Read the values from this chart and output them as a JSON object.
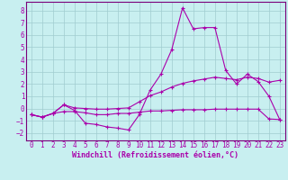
{
  "xlabel": "Windchill (Refroidissement éolien,°C)",
  "bg_color": "#c8eff0",
  "grid_color": "#a0ccd0",
  "line_color": "#aa00aa",
  "spine_color": "#7a007a",
  "xlim": [
    -0.5,
    23.5
  ],
  "ylim": [
    -2.6,
    8.7
  ],
  "xticks": [
    0,
    1,
    2,
    3,
    4,
    5,
    6,
    7,
    8,
    9,
    10,
    11,
    12,
    13,
    14,
    15,
    16,
    17,
    18,
    19,
    20,
    21,
    22,
    23
  ],
  "yticks": [
    -2,
    -1,
    0,
    1,
    2,
    3,
    4,
    5,
    6,
    7,
    8
  ],
  "series1_x": [
    0,
    1,
    2,
    3,
    4,
    5,
    6,
    7,
    8,
    9,
    10,
    11,
    12,
    13,
    14,
    15,
    16,
    17,
    18,
    19,
    20,
    21,
    22,
    23
  ],
  "series1_y": [
    -0.5,
    -0.7,
    -0.4,
    0.3,
    -0.15,
    -1.2,
    -1.3,
    -1.5,
    -1.6,
    -1.75,
    -0.5,
    1.5,
    2.8,
    4.8,
    8.2,
    6.5,
    6.6,
    6.6,
    3.1,
    2.0,
    2.8,
    2.2,
    1.0,
    -0.9
  ],
  "series2_x": [
    0,
    1,
    2,
    3,
    4,
    5,
    6,
    7,
    8,
    9,
    10,
    11,
    12,
    13,
    14,
    15,
    16,
    17,
    18,
    19,
    20,
    21,
    22,
    23
  ],
  "series2_y": [
    -0.5,
    -0.7,
    -0.4,
    0.3,
    0.05,
    0.0,
    -0.05,
    -0.05,
    0.0,
    0.05,
    0.55,
    1.05,
    1.35,
    1.75,
    2.05,
    2.25,
    2.4,
    2.55,
    2.45,
    2.35,
    2.55,
    2.45,
    2.15,
    2.3
  ],
  "series3_x": [
    0,
    1,
    2,
    3,
    4,
    5,
    6,
    7,
    8,
    9,
    10,
    11,
    12,
    13,
    14,
    15,
    16,
    17,
    18,
    19,
    20,
    21,
    22,
    23
  ],
  "series3_y": [
    -0.5,
    -0.7,
    -0.4,
    -0.25,
    -0.25,
    -0.35,
    -0.5,
    -0.5,
    -0.4,
    -0.4,
    -0.3,
    -0.2,
    -0.2,
    -0.15,
    -0.1,
    -0.1,
    -0.1,
    -0.05,
    -0.05,
    -0.05,
    -0.05,
    -0.05,
    -0.85,
    -0.9
  ]
}
